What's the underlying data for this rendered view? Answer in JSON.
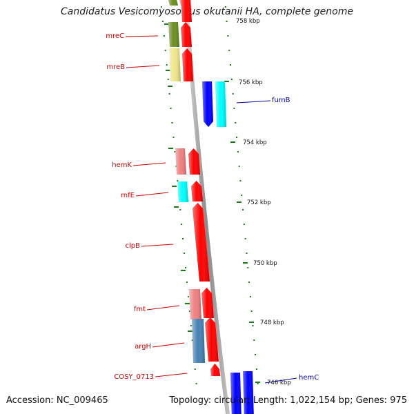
{
  "title": "Candidatus Vesicomyosocius okutanii HA, complete genome",
  "accession": "Accession: NC_009465",
  "topology": "Topology: circular; Length: 1,022,154 bp; Genes: 975",
  "colors": {
    "label_forward_strand": "#cc0000",
    "label_reverse_strand": "#000099",
    "backbone": "#999999",
    "ruler_ticks": "#1a7a1a",
    "cds": "#ff0000",
    "light_red": "#f08080",
    "blue": "#0000ff",
    "cyan": "#00ffff",
    "olive": "#6b8e23",
    "khaki": "#f0e68c",
    "steelblue": "#4682b4"
  },
  "ruler": [
    {
      "label": "758 kbp"
    },
    {
      "label": "756 kbp"
    },
    {
      "label": "754 kbp"
    },
    {
      "label": "752 kbp"
    },
    {
      "label": "750 kbp"
    },
    {
      "label": "748 kbp"
    },
    {
      "label": "746 kbp"
    }
  ],
  "genes": [
    {
      "name": "mreC",
      "strand": "forward"
    },
    {
      "name": "mreB",
      "strand": "forward"
    },
    {
      "name": "fumB",
      "strand": "reverse"
    },
    {
      "name": "hemK",
      "strand": "forward"
    },
    {
      "name": "rnfE",
      "strand": "forward"
    },
    {
      "name": "clpB",
      "strand": "forward"
    },
    {
      "name": "fmt",
      "strand": "forward"
    },
    {
      "name": "argH",
      "strand": "forward"
    },
    {
      "name": "COSY_0713",
      "strand": "forward"
    },
    {
      "name": "hemC",
      "strand": "reverse"
    }
  ]
}
